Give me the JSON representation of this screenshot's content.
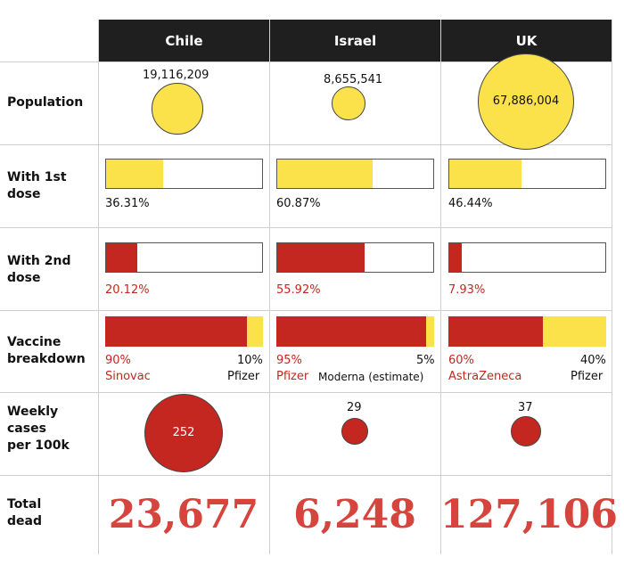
{
  "colors": {
    "yellow": "#fbe24b",
    "red": "#c4271f",
    "header_bg": "#1f1f1f",
    "dead_red": "#d6453d"
  },
  "columns": [
    "Chile",
    "Israel",
    "UK"
  ],
  "row_labels": {
    "population": "Population",
    "first_dose": "With 1st dose",
    "second_dose": "With 2nd dose",
    "vaccine": "Vaccine breakdown",
    "cases": "Weekly cases per 100k",
    "dead": "Total dead"
  },
  "chart_data": {
    "type": "table",
    "population": [
      19116209,
      8655541,
      67886004
    ],
    "population_labels": [
      "19,116,209",
      "8,655,541",
      "67,886,004"
    ],
    "first_dose_pct": [
      36.31,
      60.87,
      46.44
    ],
    "first_dose_labels": [
      "36.31%",
      "60.87%",
      "46.44%"
    ],
    "second_dose_pct": [
      20.12,
      55.92,
      7.93
    ],
    "second_dose_labels": [
      "20.12%",
      "55.92%",
      "7.93%"
    ],
    "vaccine_breakdown": [
      {
        "primary_pct": 90,
        "primary_pct_label": "90%",
        "primary_name": "Sinovac",
        "secondary_pct": 10,
        "secondary_pct_label": "10%",
        "secondary_name": "Pfizer"
      },
      {
        "primary_pct": 95,
        "primary_pct_label": "95%",
        "primary_name": "Pfizer",
        "secondary_pct": 5,
        "secondary_pct_label": "5%",
        "secondary_name": "Moderna (estimate)"
      },
      {
        "primary_pct": 60,
        "primary_pct_label": "60%",
        "primary_name": "AstraZeneca",
        "secondary_pct": 40,
        "secondary_pct_label": "40%",
        "secondary_name": "Pfizer"
      }
    ],
    "weekly_cases_per_100k": [
      252,
      29,
      37
    ],
    "weekly_cases_labels": [
      "252",
      "29",
      "37"
    ],
    "total_dead": [
      23677,
      6248,
      127106
    ],
    "total_dead_labels": [
      "23,677",
      "6,248",
      "127,106"
    ]
  }
}
